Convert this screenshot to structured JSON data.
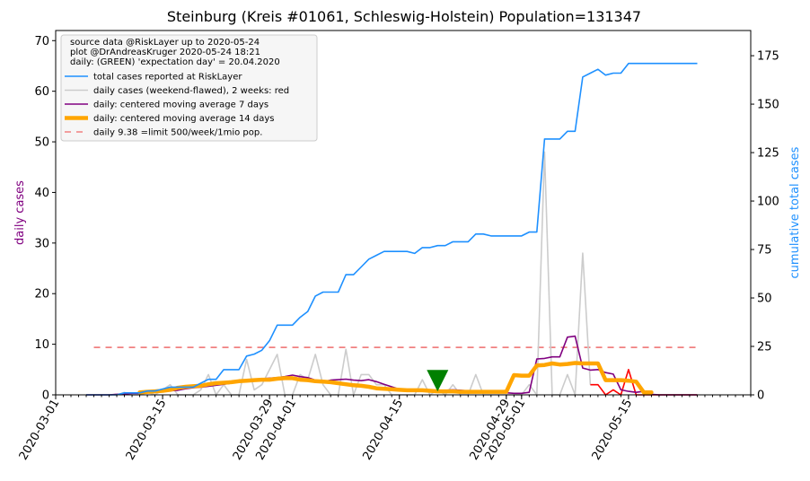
{
  "chart_data": {
    "type": "line",
    "title": "Steinburg (Kreis #01061, Schleswig-Holstein) Population=131347",
    "ylabel_left": "daily cases",
    "ylabel_right": "cumulative total cases",
    "ylim_left": [
      0,
      72
    ],
    "ylim_right": [
      0,
      188
    ],
    "yticks_left": [
      0,
      10,
      20,
      30,
      40,
      50,
      60,
      70
    ],
    "yticks_right": [
      0,
      25,
      50,
      75,
      100,
      125,
      150,
      175
    ],
    "x_start": "2020-03-01",
    "x_end": "2020-05-31",
    "xticks": [
      "2020-03-01",
      "2020-03-15",
      "2020-03-29",
      "2020-04-01",
      "2020-04-15",
      "2020-04-29",
      "2020-05-01",
      "2020-05-15"
    ],
    "grid": false,
    "legend_placement": "top-left",
    "info_lines": [
      "source data @RiskLayer up to 2020-05-24",
      "plot @DrAndreasKruger 2020-05-24 18:21",
      "daily: (GREEN) 'expectation day' = 20.04.2020"
    ],
    "legend": [
      {
        "label": "total cases reported at RiskLayer",
        "color": "#1e90ff",
        "width": 1.6,
        "dash": ""
      },
      {
        "label": "daily cases (weekend-flawed), 2 weeks: red",
        "color": "#cccccc",
        "width": 1.6,
        "dash": ""
      },
      {
        "label": "daily: centered moving average 7 days",
        "color": "#800080",
        "width": 1.6,
        "dash": ""
      },
      {
        "label": "daily: centered moving average 14 days",
        "color": "#ffa500",
        "width": 4.5,
        "dash": ""
      },
      {
        "label": "daily 9.38 =limit 500/week/1mio pop.",
        "color": "#f08080",
        "width": 1.6,
        "dash": "7,6"
      }
    ],
    "limit_value": 9.38,
    "limit_range": [
      "2020-03-06",
      "2020-05-24"
    ],
    "expectation_marker": {
      "date": "2020-04-20",
      "value": 2.8,
      "color": "#008000"
    },
    "series": [
      {
        "name": "total cases reported at RiskLayer",
        "axis": "right",
        "color": "#1e90ff",
        "x": [
          "2020-03-05",
          "2020-03-06",
          "2020-03-07",
          "2020-03-08",
          "2020-03-09",
          "2020-03-10",
          "2020-03-11",
          "2020-03-12",
          "2020-03-13",
          "2020-03-14",
          "2020-03-15",
          "2020-03-16",
          "2020-03-17",
          "2020-03-18",
          "2020-03-19",
          "2020-03-20",
          "2020-03-21",
          "2020-03-22",
          "2020-03-23",
          "2020-03-24",
          "2020-03-25",
          "2020-03-26",
          "2020-03-27",
          "2020-03-28",
          "2020-03-29",
          "2020-03-30",
          "2020-03-31",
          "2020-04-01",
          "2020-04-02",
          "2020-04-03",
          "2020-04-04",
          "2020-04-05",
          "2020-04-06",
          "2020-04-07",
          "2020-04-08",
          "2020-04-09",
          "2020-04-10",
          "2020-04-11",
          "2020-04-12",
          "2020-04-13",
          "2020-04-14",
          "2020-04-15",
          "2020-04-16",
          "2020-04-17",
          "2020-04-18",
          "2020-04-19",
          "2020-04-20",
          "2020-04-21",
          "2020-04-22",
          "2020-04-23",
          "2020-04-24",
          "2020-04-25",
          "2020-04-26",
          "2020-04-27",
          "2020-04-28",
          "2020-04-29",
          "2020-04-30",
          "2020-05-01",
          "2020-05-02",
          "2020-05-03",
          "2020-05-04",
          "2020-05-05",
          "2020-05-06",
          "2020-05-07",
          "2020-05-08",
          "2020-05-09",
          "2020-05-10",
          "2020-05-11",
          "2020-05-12",
          "2020-05-13",
          "2020-05-14",
          "2020-05-15",
          "2020-05-16",
          "2020-05-17",
          "2020-05-18",
          "2020-05-19",
          "2020-05-20",
          "2020-05-21",
          "2020-05-22",
          "2020-05-23",
          "2020-05-24"
        ],
        "values": [
          0,
          0,
          0,
          0,
          0,
          1,
          1,
          1,
          2,
          2,
          3,
          4,
          4,
          4,
          4,
          6,
          8,
          8,
          13,
          13,
          13,
          20,
          21,
          23,
          28,
          36,
          36,
          36,
          40,
          43,
          51,
          53,
          53,
          53,
          62,
          62,
          66,
          70,
          72,
          74,
          74,
          74,
          74,
          73,
          76,
          76,
          77,
          77,
          79,
          79,
          79,
          83,
          83,
          82,
          82,
          82,
          82,
          82,
          84,
          84,
          132,
          132,
          132,
          136,
          136,
          164,
          166,
          168,
          165,
          166,
          166,
          171,
          171,
          171,
          171,
          171,
          171,
          171,
          171,
          171,
          171
        ]
      },
      {
        "name": "daily cases (weekend-flawed), 2 weeks: red",
        "axis": "left",
        "color": "#cccccc",
        "recent_color": "#ff0000",
        "recent_from": "2020-05-10",
        "x": [
          "2020-03-05",
          "2020-03-06",
          "2020-03-07",
          "2020-03-08",
          "2020-03-09",
          "2020-03-10",
          "2020-03-11",
          "2020-03-12",
          "2020-03-13",
          "2020-03-14",
          "2020-03-15",
          "2020-03-16",
          "2020-03-17",
          "2020-03-18",
          "2020-03-19",
          "2020-03-20",
          "2020-03-21",
          "2020-03-22",
          "2020-03-23",
          "2020-03-24",
          "2020-03-25",
          "2020-03-26",
          "2020-03-27",
          "2020-03-28",
          "2020-03-29",
          "2020-03-30",
          "2020-03-31",
          "2020-04-01",
          "2020-04-02",
          "2020-04-03",
          "2020-04-04",
          "2020-04-05",
          "2020-04-06",
          "2020-04-07",
          "2020-04-08",
          "2020-04-09",
          "2020-04-10",
          "2020-04-11",
          "2020-04-12",
          "2020-04-13",
          "2020-04-14",
          "2020-04-15",
          "2020-04-16",
          "2020-04-17",
          "2020-04-18",
          "2020-04-19",
          "2020-04-20",
          "2020-04-21",
          "2020-04-22",
          "2020-04-23",
          "2020-04-24",
          "2020-04-25",
          "2020-04-26",
          "2020-04-27",
          "2020-04-28",
          "2020-04-29",
          "2020-04-30",
          "2020-05-01",
          "2020-05-02",
          "2020-05-03",
          "2020-05-04",
          "2020-05-05",
          "2020-05-06",
          "2020-05-07",
          "2020-05-08",
          "2020-05-09",
          "2020-05-10",
          "2020-05-11",
          "2020-05-12",
          "2020-05-13",
          "2020-05-14",
          "2020-05-15",
          "2020-05-16",
          "2020-05-17",
          "2020-05-18",
          "2020-05-19",
          "2020-05-20",
          "2020-05-21",
          "2020-05-22",
          "2020-05-23",
          "2020-05-24"
        ],
        "values": [
          0,
          0,
          0,
          0,
          0,
          0.5,
          0,
          0,
          0.5,
          0,
          1,
          2,
          0,
          0,
          0,
          1,
          4,
          0,
          2,
          0,
          0,
          7,
          1,
          2,
          5,
          8,
          0,
          0,
          4,
          3,
          8,
          2,
          0,
          0,
          9,
          0,
          4,
          4,
          2,
          2,
          0,
          0,
          0,
          0,
          3,
          0,
          1,
          0,
          2,
          0,
          0,
          4,
          0,
          0,
          0,
          0,
          0,
          0,
          2,
          0,
          48,
          0,
          0,
          4,
          0,
          28,
          2,
          2,
          0,
          1,
          0,
          5,
          0,
          0,
          0,
          0,
          0,
          0,
          0,
          0,
          0
        ]
      },
      {
        "name": "daily: centered moving average 7 days",
        "axis": "left",
        "color": "#800080",
        "x": [
          "2020-03-05",
          "2020-03-06",
          "2020-03-07",
          "2020-03-08",
          "2020-03-09",
          "2020-03-10",
          "2020-03-11",
          "2020-03-12",
          "2020-03-13",
          "2020-03-14",
          "2020-03-15",
          "2020-03-16",
          "2020-03-17",
          "2020-03-18",
          "2020-03-19",
          "2020-03-20",
          "2020-03-21",
          "2020-03-22",
          "2020-03-23",
          "2020-03-24",
          "2020-03-25",
          "2020-03-26",
          "2020-03-27",
          "2020-03-28",
          "2020-03-29",
          "2020-03-30",
          "2020-03-31",
          "2020-04-01",
          "2020-04-02",
          "2020-04-03",
          "2020-04-04",
          "2020-04-05",
          "2020-04-06",
          "2020-04-07",
          "2020-04-08",
          "2020-04-09",
          "2020-04-10",
          "2020-04-11",
          "2020-04-12",
          "2020-04-13",
          "2020-04-14",
          "2020-04-15",
          "2020-04-16",
          "2020-04-17",
          "2020-04-18",
          "2020-04-19",
          "2020-04-20",
          "2020-04-21",
          "2020-04-22",
          "2020-04-23",
          "2020-04-24",
          "2020-04-25",
          "2020-04-26",
          "2020-04-27",
          "2020-04-28",
          "2020-04-29",
          "2020-04-30",
          "2020-05-01",
          "2020-05-02",
          "2020-05-03",
          "2020-05-04",
          "2020-05-05",
          "2020-05-06",
          "2020-05-07",
          "2020-05-08",
          "2020-05-09",
          "2020-05-10",
          "2020-05-11",
          "2020-05-12",
          "2020-05-13",
          "2020-05-14",
          "2020-05-15",
          "2020-05-16",
          "2020-05-17",
          "2020-05-18",
          "2020-05-19",
          "2020-05-20",
          "2020-05-21",
          "2020-05-22",
          "2020-05-23",
          "2020-05-24"
        ],
        "values": [
          0,
          0,
          0,
          0,
          0.1,
          0.2,
          0.3,
          0.3,
          0.5,
          0.6,
          0.7,
          0.8,
          0.9,
          1.2,
          1.4,
          1.5,
          1.7,
          1.9,
          2.1,
          2.3,
          2.6,
          2.9,
          3.1,
          3.2,
          3.3,
          3.4,
          3.6,
          3.9,
          3.6,
          3.4,
          2.9,
          2.6,
          2.9,
          3.0,
          3.1,
          2.9,
          2.8,
          3.0,
          2.6,
          2.1,
          1.6,
          1.1,
          1.0,
          0.9,
          0.8,
          0.7,
          0.7,
          0.9,
          1.0,
          0.9,
          0.8,
          0.8,
          0.8,
          0.6,
          0.5,
          0.4,
          0.3,
          0.3,
          0.5,
          7.1,
          7.2,
          7.5,
          7.5,
          11.4,
          11.6,
          5.3,
          4.9,
          5.0,
          4.4,
          4.1,
          1.0,
          0.7,
          0.5,
          0.7,
          0.1,
          0,
          0,
          0,
          0,
          0,
          0
        ]
      },
      {
        "name": "daily: centered moving average 14 days",
        "axis": "left",
        "color": "#ffa500",
        "x": [
          "2020-03-12",
          "2020-03-13",
          "2020-03-14",
          "2020-03-15",
          "2020-03-16",
          "2020-03-17",
          "2020-03-18",
          "2020-03-19",
          "2020-03-20",
          "2020-03-21",
          "2020-03-22",
          "2020-03-23",
          "2020-03-24",
          "2020-03-25",
          "2020-03-26",
          "2020-03-27",
          "2020-03-28",
          "2020-03-29",
          "2020-03-30",
          "2020-03-31",
          "2020-04-01",
          "2020-04-02",
          "2020-04-03",
          "2020-04-04",
          "2020-04-05",
          "2020-04-06",
          "2020-04-07",
          "2020-04-08",
          "2020-04-09",
          "2020-04-10",
          "2020-04-11",
          "2020-04-12",
          "2020-04-13",
          "2020-04-14",
          "2020-04-15",
          "2020-04-16",
          "2020-04-17",
          "2020-04-18",
          "2020-04-19",
          "2020-04-20",
          "2020-04-21",
          "2020-04-22",
          "2020-04-23",
          "2020-04-24",
          "2020-04-25",
          "2020-04-26",
          "2020-04-27",
          "2020-04-28",
          "2020-04-29",
          "2020-04-30",
          "2020-05-01",
          "2020-05-02",
          "2020-05-03",
          "2020-05-04",
          "2020-05-05",
          "2020-05-06",
          "2020-05-07",
          "2020-05-08",
          "2020-05-09",
          "2020-05-10",
          "2020-05-11",
          "2020-05-12",
          "2020-05-13",
          "2020-05-14",
          "2020-05-15",
          "2020-05-16",
          "2020-05-17",
          "2020-05-18"
        ],
        "values": [
          0.5,
          0.6,
          0.7,
          0.8,
          1.0,
          1.4,
          1.6,
          1.7,
          1.8,
          2.1,
          2.3,
          2.4,
          2.5,
          2.7,
          2.8,
          2.9,
          3.0,
          3.0,
          3.2,
          3.3,
          3.3,
          3.0,
          2.9,
          2.7,
          2.6,
          2.5,
          2.3,
          2.1,
          1.9,
          1.8,
          1.6,
          1.3,
          1.2,
          1.1,
          1.0,
          0.9,
          0.9,
          0.9,
          0.8,
          0.7,
          0.7,
          0.7,
          0.6,
          0.6,
          0.6,
          0.6,
          0.6,
          0.6,
          0.6,
          3.9,
          3.8,
          3.8,
          5.8,
          5.9,
          6.2,
          6.0,
          6.1,
          6.3,
          6.2,
          6.2,
          6.2,
          2.9,
          2.9,
          2.9,
          2.8,
          2.6,
          0.5,
          0.5
        ]
      }
    ]
  }
}
